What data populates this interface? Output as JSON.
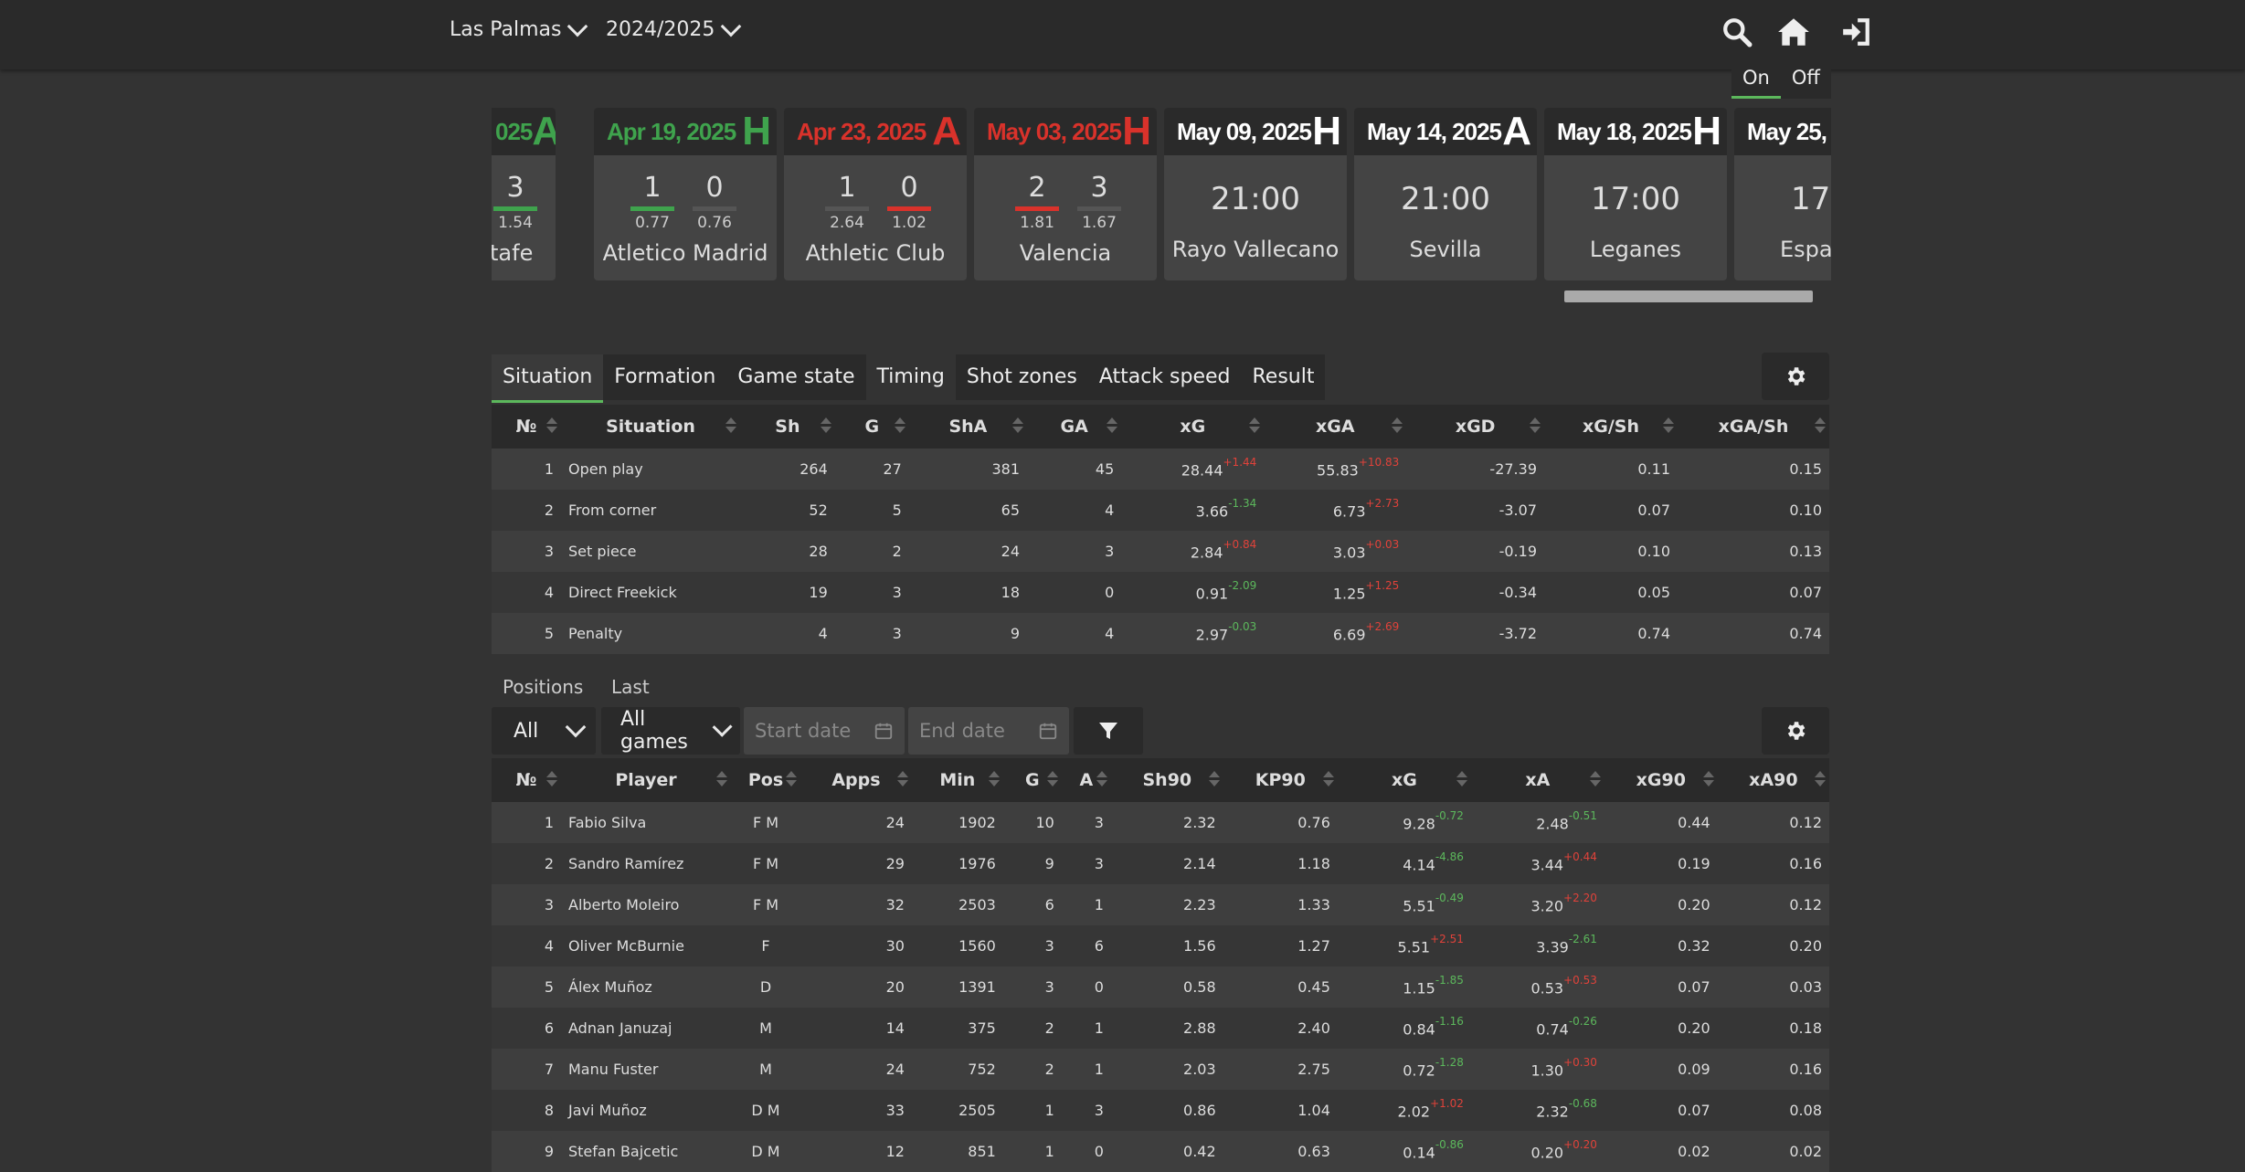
{
  "header": {
    "team": "Las Palmas",
    "season": "2024/2025",
    "icons": [
      "search-icon",
      "home-icon",
      "sign-in-icon"
    ]
  },
  "toggle": {
    "on": "On",
    "off": "Off"
  },
  "matches": [
    {
      "date": "025",
      "ha": "A",
      "color": "#3fa34d",
      "goals": [
        "3"
      ],
      "xg": [
        "1.54"
      ],
      "opponent": "tafe",
      "result": "win"
    },
    {
      "date": "Apr 19, 2025",
      "ha": "H",
      "color": "#3fa34d",
      "goals": [
        "1",
        "0"
      ],
      "xg": [
        "0.77",
        "0.76"
      ],
      "opponent": "Atletico Madrid",
      "result": "win"
    },
    {
      "date": "Apr 23, 2025",
      "ha": "A",
      "color": "#d9322b",
      "goals": [
        "1",
        "0"
      ],
      "xg": [
        "2.64",
        "1.02"
      ],
      "opponent": "Athletic Club",
      "result": "loss"
    },
    {
      "date": "May 03, 2025",
      "ha": "H",
      "color": "#d9322b",
      "goals": [
        "2",
        "3"
      ],
      "xg": [
        "1.81",
        "1.67"
      ],
      "opponent": "Valencia",
      "result": "loss"
    },
    {
      "date": "May 09, 2025",
      "ha": "H",
      "color": "#ffffff",
      "time": "21:00",
      "opponent": "Rayo Vallecano"
    },
    {
      "date": "May 14, 2025",
      "ha": "A",
      "color": "#ffffff",
      "time": "21:00",
      "opponent": "Sevilla"
    },
    {
      "date": "May 18, 2025",
      "ha": "H",
      "color": "#ffffff",
      "time": "17:00",
      "opponent": "Leganes"
    },
    {
      "date": "May 25, 2",
      "ha": "",
      "color": "#ffffff",
      "time": "17:0",
      "opponent": "Espa"
    }
  ],
  "tabs": [
    "Situation",
    "Formation",
    "Game state",
    "Timing",
    "Shot zones",
    "Attack speed",
    "Result"
  ],
  "situation_table": {
    "headers": [
      "№",
      "Situation",
      "Sh",
      "G",
      "ShA",
      "GA",
      "xG",
      "xGA",
      "xGD",
      "xG/Sh",
      "xGA/Sh"
    ],
    "rows": [
      {
        "n": "1",
        "situation": "Open play",
        "sh": "264",
        "g": "27",
        "sha": "381",
        "ga": "45",
        "xg": "28.44",
        "xg_d": "+1.44",
        "xga": "55.83",
        "xga_d": "+10.83",
        "xgd": "-27.39",
        "xgsh": "0.11",
        "xgash": "0.15"
      },
      {
        "n": "2",
        "situation": "From corner",
        "sh": "52",
        "g": "5",
        "sha": "65",
        "ga": "4",
        "xg": "3.66",
        "xg_d": "-1.34",
        "xga": "6.73",
        "xga_d": "+2.73",
        "xgd": "-3.07",
        "xgsh": "0.07",
        "xgash": "0.10"
      },
      {
        "n": "3",
        "situation": "Set piece",
        "sh": "28",
        "g": "2",
        "sha": "24",
        "ga": "3",
        "xg": "2.84",
        "xg_d": "+0.84",
        "xga": "3.03",
        "xga_d": "+0.03",
        "xgd": "-0.19",
        "xgsh": "0.10",
        "xgash": "0.13"
      },
      {
        "n": "4",
        "situation": "Direct Freekick",
        "sh": "19",
        "g": "3",
        "sha": "18",
        "ga": "0",
        "xg": "0.91",
        "xg_d": "-2.09",
        "xga": "1.25",
        "xga_d": "+1.25",
        "xgd": "-0.34",
        "xgsh": "0.05",
        "xgash": "0.07"
      },
      {
        "n": "5",
        "situation": "Penalty",
        "sh": "4",
        "g": "3",
        "sha": "9",
        "ga": "4",
        "xg": "2.97",
        "xg_d": "-0.03",
        "xga": "6.69",
        "xga_d": "+2.69",
        "xgd": "-3.72",
        "xgsh": "0.74",
        "xgash": "0.74"
      }
    ]
  },
  "filters": {
    "positions_label": "Positions",
    "last_label": "Last",
    "position_value": "All",
    "games_value": "All games",
    "start_placeholder": "Start date",
    "end_placeholder": "End date"
  },
  "players_table": {
    "headers": [
      "№",
      "Player",
      "Pos",
      "Apps",
      "Min",
      "G",
      "A",
      "Sh90",
      "KP90",
      "xG",
      "xA",
      "xG90",
      "xA90"
    ],
    "rows": [
      {
        "n": "1",
        "player": "Fabio Silva",
        "pos": "F M",
        "apps": "24",
        "min": "1902",
        "g": "10",
        "a": "3",
        "sh90": "2.32",
        "kp90": "0.76",
        "xg": "9.28",
        "xg_d": "-0.72",
        "xa": "2.48",
        "xa_d": "-0.51",
        "xg90": "0.44",
        "xa90": "0.12"
      },
      {
        "n": "2",
        "player": "Sandro Ramírez",
        "pos": "F M",
        "apps": "29",
        "min": "1976",
        "g": "9",
        "a": "3",
        "sh90": "2.14",
        "kp90": "1.18",
        "xg": "4.14",
        "xg_d": "-4.86",
        "xa": "3.44",
        "xa_d": "+0.44",
        "xg90": "0.19",
        "xa90": "0.16"
      },
      {
        "n": "3",
        "player": "Alberto Moleiro",
        "pos": "F M",
        "apps": "32",
        "min": "2503",
        "g": "6",
        "a": "1",
        "sh90": "2.23",
        "kp90": "1.33",
        "xg": "5.51",
        "xg_d": "-0.49",
        "xa": "3.20",
        "xa_d": "+2.20",
        "xg90": "0.20",
        "xa90": "0.12"
      },
      {
        "n": "4",
        "player": "Oliver McBurnie",
        "pos": "F",
        "apps": "30",
        "min": "1560",
        "g": "3",
        "a": "6",
        "sh90": "1.56",
        "kp90": "1.27",
        "xg": "5.51",
        "xg_d": "+2.51",
        "xa": "3.39",
        "xa_d": "-2.61",
        "xg90": "0.32",
        "xa90": "0.20"
      },
      {
        "n": "5",
        "player": "Álex Muñoz",
        "pos": "D",
        "apps": "20",
        "min": "1391",
        "g": "3",
        "a": "0",
        "sh90": "0.58",
        "kp90": "0.45",
        "xg": "1.15",
        "xg_d": "-1.85",
        "xa": "0.53",
        "xa_d": "+0.53",
        "xg90": "0.07",
        "xa90": "0.03"
      },
      {
        "n": "6",
        "player": "Adnan Januzaj",
        "pos": "M",
        "apps": "14",
        "min": "375",
        "g": "2",
        "a": "1",
        "sh90": "2.88",
        "kp90": "2.40",
        "xg": "0.84",
        "xg_d": "-1.16",
        "xa": "0.74",
        "xa_d": "-0.26",
        "xg90": "0.20",
        "xa90": "0.18"
      },
      {
        "n": "7",
        "player": "Manu Fuster",
        "pos": "M",
        "apps": "24",
        "min": "752",
        "g": "2",
        "a": "1",
        "sh90": "2.03",
        "kp90": "2.75",
        "xg": "0.72",
        "xg_d": "-1.28",
        "xa": "1.30",
        "xa_d": "+0.30",
        "xg90": "0.09",
        "xa90": "0.16"
      },
      {
        "n": "8",
        "player": "Javi Muñoz",
        "pos": "D M",
        "apps": "33",
        "min": "2505",
        "g": "1",
        "a": "3",
        "sh90": "0.86",
        "kp90": "1.04",
        "xg": "2.02",
        "xg_d": "+1.02",
        "xa": "2.32",
        "xa_d": "-0.68",
        "xg90": "0.07",
        "xa90": "0.08"
      },
      {
        "n": "9",
        "player": "Stefan Bajcetic",
        "pos": "D M",
        "apps": "12",
        "min": "851",
        "g": "1",
        "a": "0",
        "sh90": "0.42",
        "kp90": "0.63",
        "xg": "0.14",
        "xg_d": "-0.86",
        "xa": "0.20",
        "xa_d": "+0.20",
        "xg90": "0.02",
        "xa90": "0.02"
      }
    ]
  }
}
